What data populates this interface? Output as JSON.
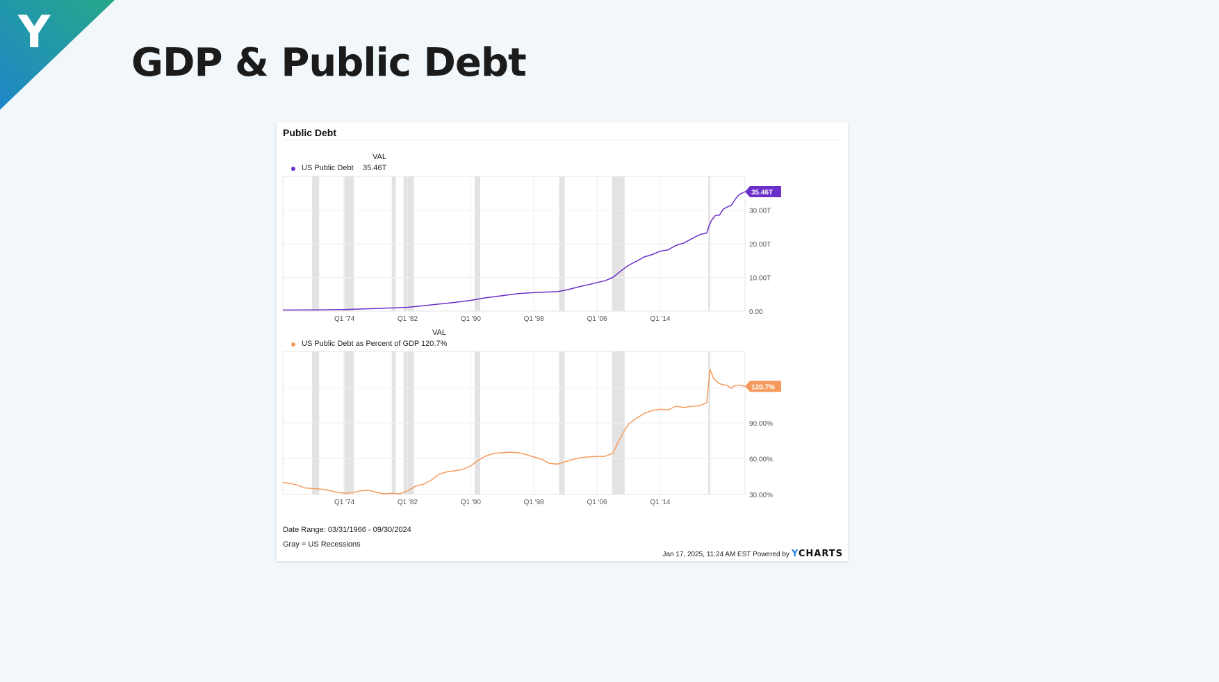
{
  "slide": {
    "title": "GDP & Public Debt",
    "logo_letter": "Y",
    "logo_colors": [
      "#1f86c8",
      "#26a88a"
    ]
  },
  "card": {
    "title": "Public Debt",
    "date_range": "Date Range: 03/31/1966 - 09/30/2024",
    "recession_note": "Gray = US Recessions",
    "timestamp": "Jan 17, 2025, 11:24 AM EST Powered by",
    "brand_prefix": "Y",
    "brand_rest": "CHARTS"
  },
  "chart_data": [
    {
      "type": "line",
      "title": "",
      "legend": {
        "header": "VAL",
        "placement": "top-left"
      },
      "series": [
        {
          "name": "US Public Debt",
          "color": "#6a2fc9",
          "last_value_label": "35.46T",
          "points": [
            [
              1966.2,
              0.32
            ],
            [
              1970,
              0.38
            ],
            [
              1974,
              0.48
            ],
            [
              1978,
              0.78
            ],
            [
              1982,
              1.14
            ],
            [
              1984,
              1.6
            ],
            [
              1986,
              2.1
            ],
            [
              1988,
              2.6
            ],
            [
              1990,
              3.2
            ],
            [
              1992,
              4.0
            ],
            [
              1994,
              4.6
            ],
            [
              1996,
              5.2
            ],
            [
              1998,
              5.5
            ],
            [
              2000,
              5.7
            ],
            [
              2001,
              5.8
            ],
            [
              2002,
              6.2
            ],
            [
              2003,
              6.8
            ],
            [
              2004,
              7.4
            ],
            [
              2005,
              7.9
            ],
            [
              2006,
              8.5
            ],
            [
              2007,
              9.0
            ],
            [
              2008,
              10.0
            ],
            [
              2009,
              11.9
            ],
            [
              2010,
              13.6
            ],
            [
              2011,
              14.8
            ],
            [
              2012,
              16.1
            ],
            [
              2013,
              16.8
            ],
            [
              2014,
              17.8
            ],
            [
              2015,
              18.2
            ],
            [
              2016,
              19.5
            ],
            [
              2017,
              20.2
            ],
            [
              2018,
              21.5
            ],
            [
              2019,
              22.7
            ],
            [
              2019.9,
              23.2
            ],
            [
              2020.25,
              25.7
            ],
            [
              2020.5,
              26.9
            ],
            [
              2021,
              28.4
            ],
            [
              2021.5,
              28.5
            ],
            [
              2022,
              30.3
            ],
            [
              2022.5,
              30.9
            ],
            [
              2023,
              31.4
            ],
            [
              2023.5,
              33.2
            ],
            [
              2024,
              34.6
            ],
            [
              2024.75,
              35.46
            ]
          ]
        }
      ],
      "x_ticks": [
        "Q1 '74",
        "Q1 '82",
        "Q1 '90",
        "Q1 '98",
        "Q1 '06",
        "Q1 '14"
      ],
      "x_tick_values": [
        1974,
        1982,
        1990,
        1998,
        2006,
        2014
      ],
      "xlim": [
        1966.2,
        2024.75
      ],
      "y_ticks": [
        "0.00",
        "10.00T",
        "20.00T",
        "30.00T"
      ],
      "y_tick_values": [
        0,
        10,
        20,
        30
      ],
      "ylim": [
        0,
        40
      ],
      "y_unit": "trillions USD",
      "grid": true,
      "recessions": [
        [
          1969.9,
          1970.8
        ],
        [
          1973.9,
          1975.2
        ],
        [
          1980.0,
          1980.5
        ],
        [
          1981.5,
          1982.8
        ],
        [
          1990.5,
          1991.2
        ],
        [
          2001.2,
          2001.9
        ],
        [
          2007.9,
          2009.5
        ],
        [
          2020.1,
          2020.35
        ]
      ]
    },
    {
      "type": "line",
      "title": "",
      "legend": {
        "header": "VAL",
        "placement": "top-left"
      },
      "series": [
        {
          "name": "US Public Debt as Percent of GDP",
          "color": "#f59a5c",
          "last_value_label": "120.7%",
          "points": [
            [
              1966.2,
              40
            ],
            [
              1967,
              39.5
            ],
            [
              1968,
              38
            ],
            [
              1969,
              35.5
            ],
            [
              1970,
              35
            ],
            [
              1971,
              34.5
            ],
            [
              1972,
              33.5
            ],
            [
              1973,
              32
            ],
            [
              1974,
              31
            ],
            [
              1975,
              31.5
            ],
            [
              1976,
              33
            ],
            [
              1977,
              33.5
            ],
            [
              1978,
              32
            ],
            [
              1979,
              30.5
            ],
            [
              1980,
              31
            ],
            [
              1981,
              30.5
            ],
            [
              1982,
              33
            ],
            [
              1983,
              37
            ],
            [
              1984,
              38.5
            ],
            [
              1985,
              42
            ],
            [
              1986,
              47
            ],
            [
              1987,
              49
            ],
            [
              1988,
              50
            ],
            [
              1989,
              51
            ],
            [
              1990,
              54
            ],
            [
              1991,
              59
            ],
            [
              1992,
              62.5
            ],
            [
              1993,
              64.5
            ],
            [
              1994,
              65
            ],
            [
              1995,
              65.5
            ],
            [
              1996,
              65
            ],
            [
              1997,
              63.5
            ],
            [
              1998,
              61.5
            ],
            [
              1999,
              59.5
            ],
            [
              2000,
              56
            ],
            [
              2001,
              55.5
            ],
            [
              2002,
              57.5
            ],
            [
              2003,
              59.5
            ],
            [
              2004,
              61
            ],
            [
              2005,
              61.5
            ],
            [
              2006,
              62
            ],
            [
              2007,
              62
            ],
            [
              2008,
              64.5
            ],
            [
              2008.75,
              75
            ],
            [
              2009.5,
              84
            ],
            [
              2010,
              89
            ],
            [
              2011,
              94
            ],
            [
              2012,
              98
            ],
            [
              2013,
              100.5
            ],
            [
              2014,
              101.5
            ],
            [
              2015,
              101
            ],
            [
              2016,
              104
            ],
            [
              2017,
              103
            ],
            [
              2018,
              104
            ],
            [
              2019,
              104.5
            ],
            [
              2019.9,
              107
            ],
            [
              2020.3,
              135
            ],
            [
              2020.8,
              127
            ],
            [
              2021.5,
              123
            ],
            [
              2022,
              122
            ],
            [
              2022.5,
              121.5
            ],
            [
              2023,
              119
            ],
            [
              2023.5,
              121.5
            ],
            [
              2024,
              121.5
            ],
            [
              2024.75,
              120.7
            ]
          ]
        }
      ],
      "x_ticks": [
        "Q1 '74",
        "Q1 '82",
        "Q1 '90",
        "Q1 '98",
        "Q1 '06",
        "Q1 '14"
      ],
      "x_tick_values": [
        1974,
        1982,
        1990,
        1998,
        2006,
        2014
      ],
      "xlim": [
        1966.2,
        2024.75
      ],
      "y_ticks": [
        "30.00%",
        "60.00%",
        "90.00%"
      ],
      "y_tick_values": [
        30,
        60,
        90
      ],
      "ylim": [
        30,
        150
      ],
      "y_unit": "percent of GDP",
      "grid": true,
      "recessions": [
        [
          1969.9,
          1970.8
        ],
        [
          1973.9,
          1975.2
        ],
        [
          1980.0,
          1980.5
        ],
        [
          1981.5,
          1982.8
        ],
        [
          1990.5,
          1991.2
        ],
        [
          2001.2,
          2001.9
        ],
        [
          2007.9,
          2009.5
        ],
        [
          2020.1,
          2020.35
        ]
      ]
    }
  ]
}
